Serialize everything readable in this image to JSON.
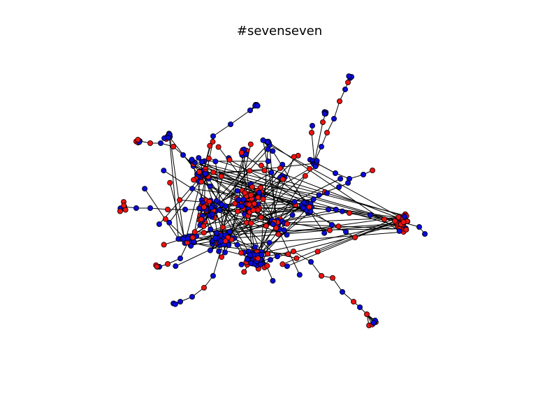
{
  "title": "#sevenseven",
  "graph": {
    "node_colors": {
      "red": "#ee1111",
      "blue": "#0a0ad6"
    },
    "edge_color": "#000000",
    "node_stroke": "#000000"
  }
}
